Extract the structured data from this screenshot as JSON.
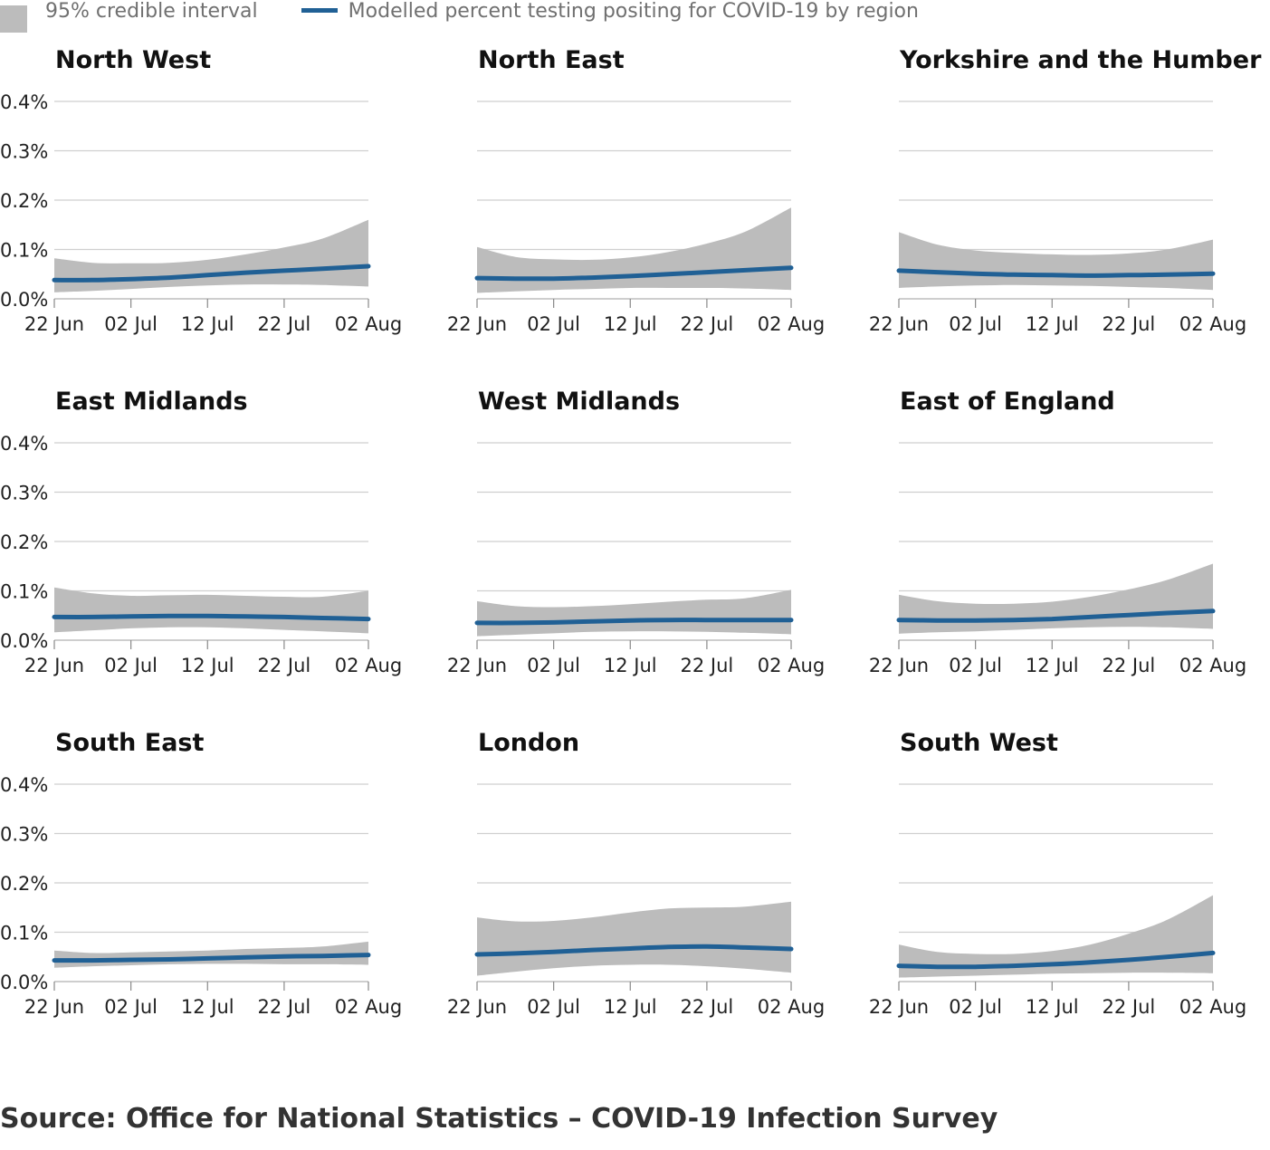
{
  "legend": {
    "interval_label": "95% credible interval",
    "line_label": "Modelled percent testing positing for COVID-19 by region",
    "interval_color": "#bcbcbc",
    "line_color": "#206095"
  },
  "source": "Source: Office for National Statistics – COVID-19 Infection Survey",
  "chart_data": [
    {
      "type": "area",
      "title": "North West",
      "categories": [
        "22 Jun",
        "02 Jul",
        "12 Jul",
        "22 Jul",
        "02 Aug"
      ],
      "yticks": [
        "0.0%",
        "0.1%",
        "0.2%",
        "0.3%",
        "0.4%"
      ],
      "ylim": [
        0,
        0.4
      ],
      "x_days": [
        0,
        5,
        10,
        15,
        20,
        25,
        30,
        35,
        41
      ],
      "mean": [
        0.038,
        0.038,
        0.04,
        0.043,
        0.048,
        0.053,
        0.057,
        0.061,
        0.066
      ],
      "lower": [
        0.013,
        0.016,
        0.02,
        0.024,
        0.027,
        0.029,
        0.029,
        0.028,
        0.025
      ],
      "upper": [
        0.082,
        0.073,
        0.072,
        0.073,
        0.079,
        0.09,
        0.104,
        0.122,
        0.16
      ]
    },
    {
      "type": "area",
      "title": "North East",
      "categories": [
        "22 Jun",
        "02 Jul",
        "12 Jul",
        "22 Jul",
        "02 Aug"
      ],
      "yticks": [
        "0.0%",
        "0.1%",
        "0.2%",
        "0.3%",
        "0.4%"
      ],
      "ylim": [
        0,
        0.4
      ],
      "x_days": [
        0,
        5,
        10,
        15,
        20,
        25,
        30,
        35,
        41
      ],
      "mean": [
        0.042,
        0.041,
        0.041,
        0.043,
        0.046,
        0.05,
        0.054,
        0.058,
        0.063
      ],
      "lower": [
        0.012,
        0.015,
        0.018,
        0.02,
        0.022,
        0.022,
        0.022,
        0.021,
        0.018
      ],
      "upper": [
        0.105,
        0.085,
        0.08,
        0.079,
        0.084,
        0.095,
        0.112,
        0.136,
        0.185
      ]
    },
    {
      "type": "area",
      "title": "Yorkshire and the Humber",
      "categories": [
        "22 Jun",
        "02 Jul",
        "12 Jul",
        "22 Jul",
        "02 Aug"
      ],
      "yticks": [
        "0.0%",
        "0.1%",
        "0.2%",
        "0.3%",
        "0.4%"
      ],
      "ylim": [
        0,
        0.4
      ],
      "x_days": [
        0,
        5,
        10,
        15,
        20,
        25,
        30,
        35,
        41
      ],
      "mean": [
        0.057,
        0.054,
        0.051,
        0.049,
        0.048,
        0.047,
        0.048,
        0.049,
        0.051
      ],
      "lower": [
        0.022,
        0.025,
        0.027,
        0.028,
        0.027,
        0.026,
        0.024,
        0.022,
        0.018
      ],
      "upper": [
        0.135,
        0.11,
        0.098,
        0.093,
        0.09,
        0.089,
        0.092,
        0.1,
        0.12
      ]
    },
    {
      "type": "area",
      "title": "East Midlands",
      "categories": [
        "22 Jun",
        "02 Jul",
        "12 Jul",
        "22 Jul",
        "02 Aug"
      ],
      "yticks": [
        "0.0%",
        "0.1%",
        "0.2%",
        "0.3%",
        "0.4%"
      ],
      "ylim": [
        0,
        0.4
      ],
      "x_days": [
        0,
        5,
        10,
        15,
        20,
        25,
        30,
        35,
        41
      ],
      "mean": [
        0.047,
        0.047,
        0.048,
        0.049,
        0.049,
        0.048,
        0.047,
        0.045,
        0.043
      ],
      "lower": [
        0.016,
        0.02,
        0.024,
        0.026,
        0.026,
        0.024,
        0.021,
        0.018,
        0.014
      ],
      "upper": [
        0.107,
        0.095,
        0.09,
        0.091,
        0.092,
        0.09,
        0.088,
        0.088,
        0.1
      ]
    },
    {
      "type": "area",
      "title": "West Midlands",
      "categories": [
        "22 Jun",
        "02 Jul",
        "12 Jul",
        "22 Jul",
        "02 Aug"
      ],
      "yticks": [
        "0.0%",
        "0.1%",
        "0.2%",
        "0.3%",
        "0.4%"
      ],
      "ylim": [
        0,
        0.4
      ],
      "x_days": [
        0,
        5,
        10,
        15,
        20,
        25,
        30,
        35,
        41
      ],
      "mean": [
        0.035,
        0.035,
        0.036,
        0.038,
        0.04,
        0.041,
        0.041,
        0.041,
        0.041
      ],
      "lower": [
        0.008,
        0.011,
        0.014,
        0.017,
        0.018,
        0.018,
        0.017,
        0.015,
        0.012
      ],
      "upper": [
        0.079,
        0.069,
        0.067,
        0.069,
        0.073,
        0.078,
        0.082,
        0.085,
        0.102
      ]
    },
    {
      "type": "area",
      "title": "East of England",
      "categories": [
        "22 Jun",
        "02 Jul",
        "12 Jul",
        "22 Jul",
        "02 Aug"
      ],
      "yticks": [
        "0.0%",
        "0.1%",
        "0.2%",
        "0.3%",
        "0.4%"
      ],
      "ylim": [
        0,
        0.4
      ],
      "x_days": [
        0,
        5,
        10,
        15,
        20,
        25,
        30,
        35,
        41
      ],
      "mean": [
        0.041,
        0.04,
        0.04,
        0.041,
        0.043,
        0.047,
        0.051,
        0.055,
        0.059
      ],
      "lower": [
        0.013,
        0.016,
        0.018,
        0.021,
        0.024,
        0.026,
        0.027,
        0.026,
        0.023
      ],
      "upper": [
        0.092,
        0.079,
        0.074,
        0.074,
        0.078,
        0.088,
        0.103,
        0.122,
        0.155
      ]
    },
    {
      "type": "area",
      "title": "South East",
      "categories": [
        "22 Jun",
        "02 Jul",
        "12 Jul",
        "22 Jul",
        "02 Aug"
      ],
      "yticks": [
        "0.0%",
        "0.1%",
        "0.2%",
        "0.3%",
        "0.4%"
      ],
      "ylim": [
        0,
        0.4
      ],
      "x_days": [
        0,
        5,
        10,
        15,
        20,
        25,
        30,
        35,
        41
      ],
      "mean": [
        0.043,
        0.043,
        0.044,
        0.045,
        0.047,
        0.049,
        0.051,
        0.052,
        0.054
      ],
      "lower": [
        0.028,
        0.031,
        0.033,
        0.035,
        0.036,
        0.036,
        0.035,
        0.035,
        0.034
      ],
      "upper": [
        0.063,
        0.058,
        0.059,
        0.061,
        0.063,
        0.066,
        0.068,
        0.071,
        0.081
      ]
    },
    {
      "type": "area",
      "title": "London",
      "categories": [
        "22 Jun",
        "02 Jul",
        "12 Jul",
        "22 Jul",
        "02 Aug"
      ],
      "yticks": [
        "0.0%",
        "0.1%",
        "0.2%",
        "0.3%",
        "0.4%"
      ],
      "ylim": [
        0,
        0.4
      ],
      "x_days": [
        0,
        5,
        10,
        15,
        20,
        25,
        30,
        35,
        41
      ],
      "mean": [
        0.055,
        0.057,
        0.06,
        0.064,
        0.067,
        0.07,
        0.071,
        0.069,
        0.066
      ],
      "lower": [
        0.012,
        0.02,
        0.027,
        0.032,
        0.034,
        0.034,
        0.031,
        0.026,
        0.018
      ],
      "upper": [
        0.13,
        0.122,
        0.123,
        0.13,
        0.14,
        0.148,
        0.15,
        0.152,
        0.162
      ]
    },
    {
      "type": "area",
      "title": "South West",
      "categories": [
        "22 Jun",
        "02 Jul",
        "12 Jul",
        "22 Jul",
        "02 Aug"
      ],
      "yticks": [
        "0.0%",
        "0.1%",
        "0.2%",
        "0.3%",
        "0.4%"
      ],
      "ylim": [
        0,
        0.4
      ],
      "x_days": [
        0,
        5,
        10,
        15,
        20,
        25,
        30,
        35,
        41
      ],
      "mean": [
        0.032,
        0.03,
        0.03,
        0.032,
        0.035,
        0.039,
        0.044,
        0.05,
        0.058
      ],
      "lower": [
        0.008,
        0.01,
        0.012,
        0.014,
        0.016,
        0.017,
        0.018,
        0.018,
        0.017
      ],
      "upper": [
        0.075,
        0.06,
        0.056,
        0.056,
        0.062,
        0.075,
        0.097,
        0.125,
        0.175
      ]
    }
  ]
}
